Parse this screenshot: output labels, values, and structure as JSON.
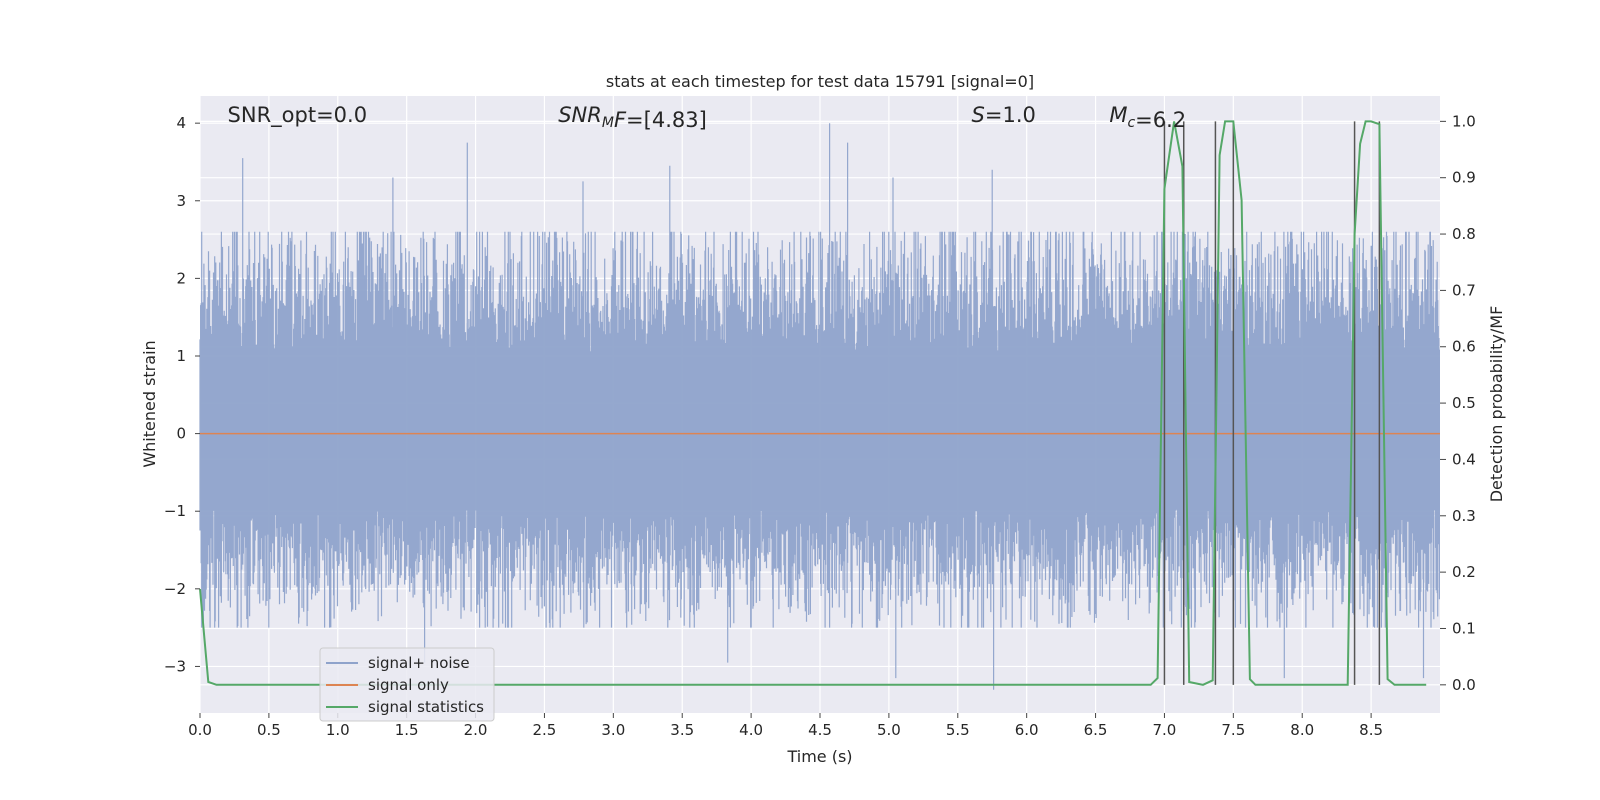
{
  "chart_data": {
    "type": "line",
    "title": "stats at each timestep for test data 15791 [signal=0]",
    "xlabel": "Time (s)",
    "ylabel_left": "Whitened strain",
    "ylabel_right": "Detection probability/MF",
    "xlim": [
      0.0,
      9.0
    ],
    "ylim_left": [
      -3.6,
      4.35
    ],
    "ylim_right": [
      -0.05,
      1.045
    ],
    "xticks": [
      "0.0",
      "0.5",
      "1.0",
      "1.5",
      "2.0",
      "2.5",
      "3.0",
      "3.5",
      "4.0",
      "4.5",
      "5.0",
      "5.5",
      "6.0",
      "6.5",
      "7.0",
      "7.5",
      "8.0",
      "8.5"
    ],
    "yticks_left": [
      "−3",
      "−2",
      "−1",
      "0",
      "1",
      "2",
      "3",
      "4"
    ],
    "yticks_right": [
      "0.0",
      "0.1",
      "0.2",
      "0.3",
      "0.4",
      "0.5",
      "0.6",
      "0.7",
      "0.8",
      "0.9",
      "1.0"
    ],
    "grid": true,
    "legend_position": "lower-left",
    "annotations": [
      {
        "text": "SNR_opt=0.0",
        "x": 0.2,
        "italic": false
      },
      {
        "text_italic": "SNR",
        "text_sub": "M",
        "text_tail_italic": "F",
        "text_rest": "=[4.83]",
        "x": 2.6
      },
      {
        "text_italic": "S",
        "text_rest": "=1.0",
        "x": 5.6
      },
      {
        "text_italic": "M",
        "text_sub": "c",
        "text_rest": "=6.2",
        "x": 6.6
      }
    ],
    "series": [
      {
        "name": "signal+ noise",
        "axis": "left",
        "color": "#8fa3cb",
        "description": "dense whitened noise",
        "envelope": {
          "typical": [
            -1.5,
            1.8
          ],
          "extremes": [
            -3.3,
            4.0
          ]
        },
        "peaks": [
          {
            "x": 0.31,
            "y": 3.55
          },
          {
            "x": 1.94,
            "y": 3.75
          },
          {
            "x": 3.41,
            "y": 3.45
          },
          {
            "x": 4.57,
            "y": 4.0
          },
          {
            "x": 4.7,
            "y": 3.75
          },
          {
            "x": 5.03,
            "y": 3.3
          },
          {
            "x": 5.75,
            "y": 3.4
          },
          {
            "x": 1.4,
            "y": 3.3
          },
          {
            "x": 2.78,
            "y": 3.25
          },
          {
            "x": 5.76,
            "y": -3.3
          },
          {
            "x": 5.05,
            "y": -3.15
          },
          {
            "x": 3.83,
            "y": -2.95
          },
          {
            "x": 8.88,
            "y": -3.15
          },
          {
            "x": 7.87,
            "y": -3.15
          },
          {
            "x": 1.63,
            "y": -2.95
          }
        ]
      },
      {
        "name": "signal only",
        "axis": "left",
        "color": "#dd8452",
        "x": [
          0.0,
          9.0
        ],
        "y": [
          0.0,
          0.0
        ]
      },
      {
        "name": "signal statistics",
        "axis": "right",
        "color": "#55a868",
        "x": [
          0.0,
          0.06,
          0.12,
          0.2,
          6.9,
          6.95,
          7.0,
          7.07,
          7.13,
          7.18,
          7.28,
          7.35,
          7.4,
          7.44,
          7.5,
          7.56,
          7.62,
          7.66,
          8.33,
          8.38,
          8.42,
          8.46,
          8.5,
          8.56,
          8.62,
          8.67,
          8.9
        ],
        "y": [
          0.17,
          0.005,
          0.0,
          0.0,
          0.0,
          0.012,
          0.88,
          1.0,
          0.92,
          0.005,
          0.0,
          0.008,
          0.94,
          1.0,
          1.0,
          0.86,
          0.01,
          0.0,
          0.0,
          0.8,
          0.96,
          1.0,
          1.0,
          0.995,
          0.01,
          0.0,
          0.0
        ]
      }
    ],
    "vertical_lines": {
      "color": "#555555",
      "x": [
        7.0,
        7.14,
        7.37,
        7.5,
        8.38,
        8.56
      ]
    }
  }
}
